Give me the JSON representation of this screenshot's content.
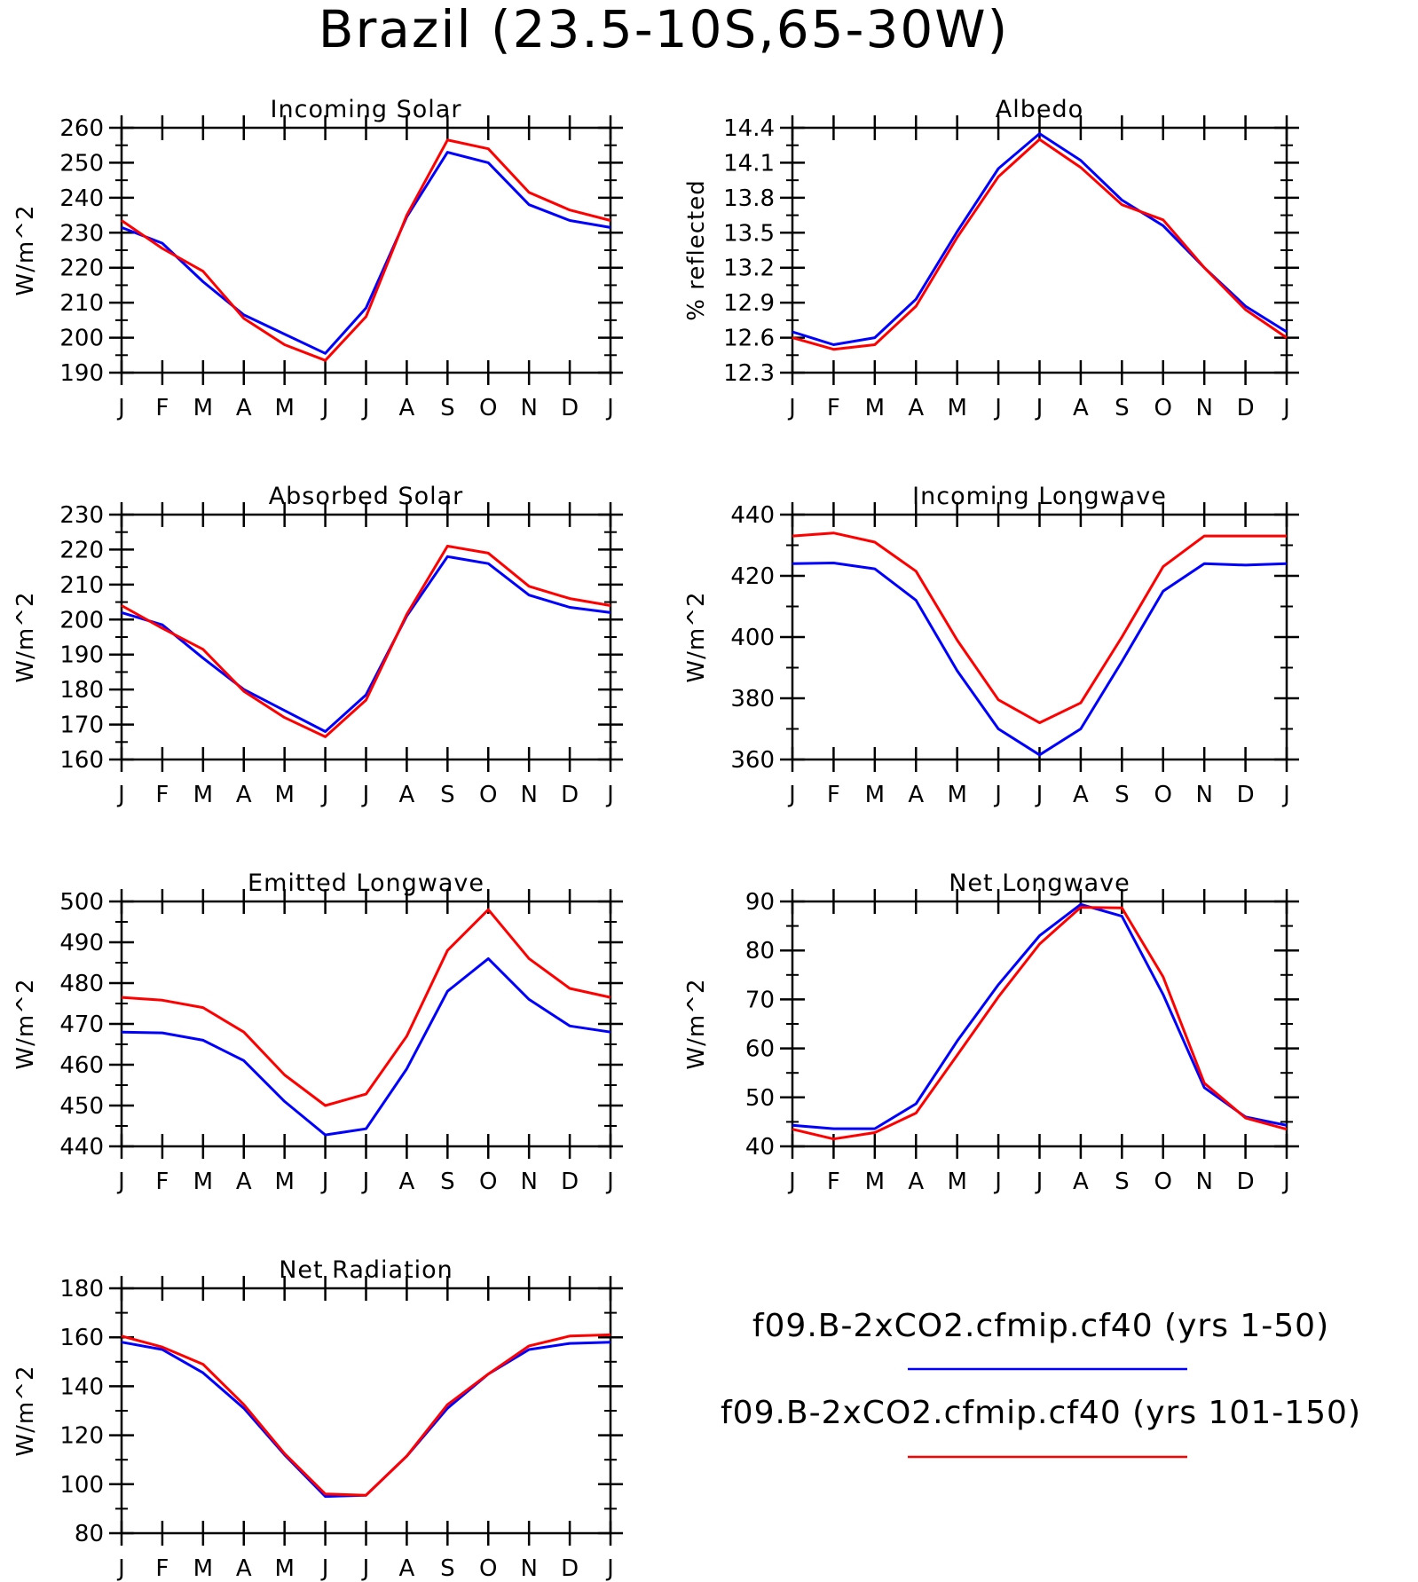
{
  "figure": {
    "title": "Brazil (23.5-10S,65-30W)"
  },
  "chart_data": [
    {
      "id": "incoming-solar",
      "type": "line",
      "title": "Incoming Solar",
      "ylabel": "W/m^2",
      "categories": [
        "J",
        "F",
        "M",
        "A",
        "M",
        "J",
        "J",
        "A",
        "S",
        "O",
        "N",
        "D",
        "J"
      ],
      "ylim": [
        190,
        260
      ],
      "yticks": [
        "190",
        "200",
        "210",
        "220",
        "230",
        "240",
        "250",
        "260"
      ],
      "series": [
        {
          "color": "#0000ff",
          "values": [
            231.5,
            227,
            216,
            206.5,
            201,
            195.5,
            208.5,
            234.5,
            253,
            250,
            238,
            233.5,
            231.5
          ]
        },
        {
          "color": "#ff0000",
          "values": [
            233.5,
            225.5,
            219,
            205.5,
            198,
            193.5,
            206,
            235,
            256.5,
            254,
            241.5,
            236.5,
            233.5
          ]
        }
      ]
    },
    {
      "id": "albedo",
      "type": "line",
      "title": "Albedo",
      "ylabel": "% reflected",
      "categories": [
        "J",
        "F",
        "M",
        "A",
        "M",
        "J",
        "J",
        "A",
        "S",
        "O",
        "N",
        "D",
        "J"
      ],
      "ylim": [
        12.3,
        14.4
      ],
      "yticks": [
        "12.3",
        "12.6",
        "12.9",
        "13.2",
        "13.5",
        "13.8",
        "14.1",
        "14.4"
      ],
      "series": [
        {
          "color": "#0000ff",
          "values": [
            12.65,
            12.54,
            12.6,
            12.93,
            13.51,
            14.05,
            14.35,
            14.12,
            13.78,
            13.56,
            13.2,
            12.87,
            12.65
          ]
        },
        {
          "color": "#ff0000",
          "values": [
            12.6,
            12.5,
            12.54,
            12.87,
            13.46,
            13.98,
            14.3,
            14.06,
            13.74,
            13.61,
            13.2,
            12.84,
            12.6
          ]
        }
      ]
    },
    {
      "id": "absorbed-solar",
      "type": "line",
      "title": "Absorbed Solar",
      "ylabel": "W/m^2",
      "categories": [
        "J",
        "F",
        "M",
        "A",
        "M",
        "J",
        "J",
        "A",
        "S",
        "O",
        "N",
        "D",
        "J"
      ],
      "ylim": [
        160,
        230
      ],
      "yticks": [
        "160",
        "170",
        "180",
        "190",
        "200",
        "210",
        "220",
        "230"
      ],
      "series": [
        {
          "color": "#0000ff",
          "values": [
            202,
            198.5,
            189,
            180,
            174,
            168,
            178.5,
            201,
            218,
            216,
            207,
            203.5,
            202
          ]
        },
        {
          "color": "#ff0000",
          "values": [
            204,
            197.5,
            191.5,
            179.5,
            172,
            166.5,
            177,
            201.5,
            221,
            219,
            209.5,
            206,
            204
          ]
        }
      ]
    },
    {
      "id": "incoming-longwave",
      "type": "line",
      "title": "Incoming Longwave",
      "ylabel": "W/m^2",
      "categories": [
        "J",
        "F",
        "M",
        "A",
        "M",
        "J",
        "J",
        "A",
        "S",
        "O",
        "N",
        "D",
        "J"
      ],
      "ylim": [
        360,
        440
      ],
      "yticks": [
        "360",
        "380",
        "400",
        "420",
        "440"
      ],
      "series": [
        {
          "color": "#0000ff",
          "values": [
            424,
            424.2,
            422.3,
            412,
            389,
            370,
            361.5,
            370,
            392,
            415,
            424,
            423.5,
            424
          ]
        },
        {
          "color": "#ff0000",
          "values": [
            433,
            434,
            431,
            421.5,
            399,
            379.5,
            372,
            378.5,
            400,
            423,
            433,
            433,
            433
          ]
        }
      ]
    },
    {
      "id": "emitted-longwave",
      "type": "line",
      "title": "Emitted Longwave",
      "ylabel": "W/m^2",
      "categories": [
        "J",
        "F",
        "M",
        "A",
        "M",
        "J",
        "J",
        "A",
        "S",
        "O",
        "N",
        "D",
        "J"
      ],
      "ylim": [
        440,
        500
      ],
      "yticks": [
        "440",
        "450",
        "460",
        "470",
        "480",
        "490",
        "500"
      ],
      "series": [
        {
          "color": "#0000ff",
          "values": [
            468,
            467.8,
            466,
            461,
            451,
            442.8,
            444.3,
            459,
            478,
            486,
            476,
            469.5,
            468
          ]
        },
        {
          "color": "#ff0000",
          "values": [
            476.5,
            475.8,
            474,
            468,
            457.5,
            450,
            452.8,
            467,
            488,
            498,
            486,
            478.7,
            476.5
          ]
        }
      ]
    },
    {
      "id": "net-longwave",
      "type": "line",
      "title": "Net Longwave",
      "ylabel": "W/m^2",
      "categories": [
        "J",
        "F",
        "M",
        "A",
        "M",
        "J",
        "J",
        "A",
        "S",
        "O",
        "N",
        "D",
        "J"
      ],
      "ylim": [
        40,
        90
      ],
      "yticks": [
        "40",
        "50",
        "60",
        "70",
        "80",
        "90"
      ],
      "series": [
        {
          "color": "#0000ff",
          "values": [
            44.3,
            43.6,
            43.6,
            48.7,
            61.5,
            73,
            83,
            89.4,
            87,
            71,
            52,
            46,
            44.3
          ]
        },
        {
          "color": "#ff0000",
          "values": [
            43.5,
            41.5,
            42.8,
            46.8,
            58.6,
            70.5,
            81.3,
            88.8,
            88.7,
            74.6,
            52.9,
            45.8,
            43.5
          ]
        }
      ]
    },
    {
      "id": "net-radiation",
      "type": "line",
      "title": "Net Radiation",
      "ylabel": "W/m^2",
      "categories": [
        "J",
        "F",
        "M",
        "A",
        "M",
        "J",
        "J",
        "A",
        "S",
        "O",
        "N",
        "D",
        "J"
      ],
      "ylim": [
        80,
        180
      ],
      "yticks": [
        "80",
        "100",
        "120",
        "140",
        "160",
        "180"
      ],
      "series": [
        {
          "color": "#0000ff",
          "values": [
            158,
            155,
            145.5,
            131,
            112,
            95,
            95.5,
            111.5,
            131,
            145,
            155,
            157.5,
            158
          ]
        },
        {
          "color": "#ff0000",
          "values": [
            160.5,
            156,
            149,
            132.5,
            112.5,
            96,
            95.5,
            111.5,
            132.5,
            145,
            156.5,
            160.5,
            161
          ]
        }
      ]
    }
  ],
  "legend": [
    {
      "label": "f09.B-2xCO2.cfmip.cf40 (yrs 1-50)",
      "color": "#0000ff"
    },
    {
      "label": "f09.B-2xCO2.cfmip.cf40 (yrs 101-150)",
      "color": "#ff0000"
    }
  ]
}
